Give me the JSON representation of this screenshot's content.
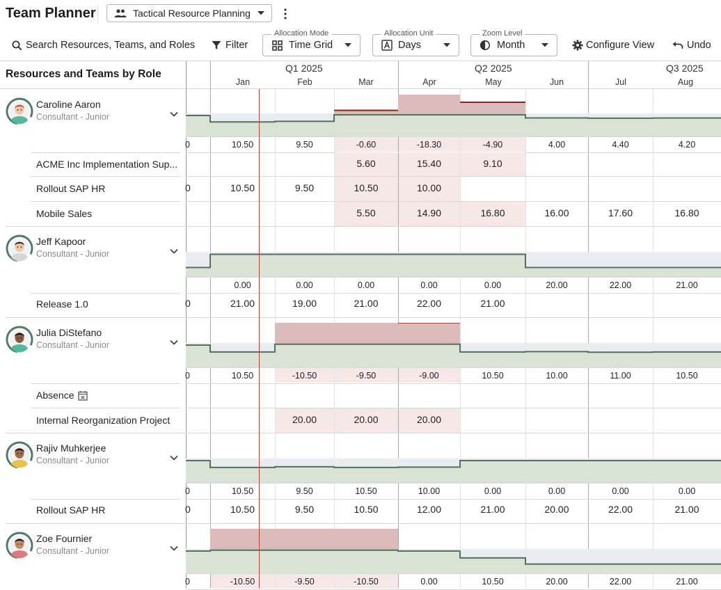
{
  "app": {
    "title": "Team Planner"
  },
  "view_selector": {
    "label": "Tactical Resource Planning"
  },
  "toolbar": {
    "search_label": "Search Resources, Teams, and Roles",
    "filter_label": "Filter",
    "allocation_mode": {
      "label": "Allocation Mode",
      "value": "Time Grid"
    },
    "allocation_unit": {
      "label": "Allocation Unit",
      "value": "Days"
    },
    "zoom_level": {
      "label": "Zoom Level",
      "value": "Month"
    },
    "configure_label": "Configure View",
    "undo_label": "Undo"
  },
  "left_panel": {
    "heading": "Resources and Teams by Role"
  },
  "timeline": {
    "quarters": [
      "Q1 2025",
      "Q2 2025",
      "Q3 2025"
    ],
    "months": [
      "Jan",
      "Feb",
      "Mar",
      "Apr",
      "May",
      "Jun",
      "Jul",
      "Aug"
    ]
  },
  "colors": {
    "capacity": "#d9e3d3",
    "free": "#e9edf1",
    "over": "#dcbcbb",
    "over_line": "#8b231c",
    "line": "#52705c",
    "today": "#c0463a"
  },
  "resources": [
    {
      "name": "Caroline Aaron",
      "role": "Consultant - Junior",
      "totals": [
        "0",
        "10.50",
        "9.50",
        "-0.60",
        "-18.30",
        "-4.90",
        "4.00",
        "4.40",
        "4.20"
      ],
      "projects": [
        {
          "name": "ACME Inc Implementation Sup...",
          "values": [
            "",
            "",
            "",
            "5.60",
            "15.40",
            "9.10",
            "",
            "",
            ""
          ]
        },
        {
          "name": "Rollout SAP HR",
          "values": [
            "0",
            "10.50",
            "9.50",
            "10.50",
            "10.00",
            "",
            "",
            "",
            ""
          ]
        },
        {
          "name": "Mobile Sales",
          "values": [
            "",
            "",
            "",
            "5.50",
            "14.90",
            "16.80",
            "16.00",
            "17.60",
            "16.80"
          ]
        }
      ]
    },
    {
      "name": "Jeff Kapoor",
      "role": "Consultant - Junior",
      "totals": [
        "",
        "0.00",
        "0.00",
        "0.00",
        "0.00",
        "0.00",
        "20.00",
        "22.00",
        "21.00"
      ],
      "projects": [
        {
          "name": "Release 1.0",
          "values": [
            "0",
            "21.00",
            "19.00",
            "21.00",
            "22.00",
            "21.00",
            "",
            "",
            ""
          ]
        }
      ]
    },
    {
      "name": "Julia DiStefano",
      "role": "Consultant - Junior",
      "totals": [
        "0",
        "10.50",
        "-10.50",
        "-9.50",
        "-9.00",
        "10.50",
        "10.00",
        "11.00",
        "10.50"
      ],
      "projects": [
        {
          "name": "Absence",
          "values": [
            "",
            "",
            "",
            "",
            "",
            "",
            "",
            "",
            ""
          ]
        },
        {
          "name": "Internal Reorganization Project",
          "values": [
            "",
            "",
            "20.00",
            "20.00",
            "20.00",
            "",
            "",
            "",
            ""
          ]
        }
      ]
    },
    {
      "name": "Rajiv Muhkerjee",
      "role": "Consultant - Junior",
      "totals": [
        "0",
        "10.50",
        "9.50",
        "10.50",
        "10.00",
        "0.00",
        "0.00",
        "0.00",
        "0.00"
      ],
      "projects": [
        {
          "name": "Rollout SAP HR",
          "values": [
            "0",
            "10.50",
            "9.50",
            "10.50",
            "12.00",
            "21.00",
            "20.00",
            "22.00",
            "21.00"
          ]
        }
      ]
    },
    {
      "name": "Zoe Fournier",
      "role": "Consultant - Junior",
      "totals": [
        "0",
        "-10.50",
        "-9.50",
        "-10.50",
        "0.00",
        "10.50",
        "20.00",
        "22.00",
        "21.00"
      ],
      "projects": []
    }
  ]
}
